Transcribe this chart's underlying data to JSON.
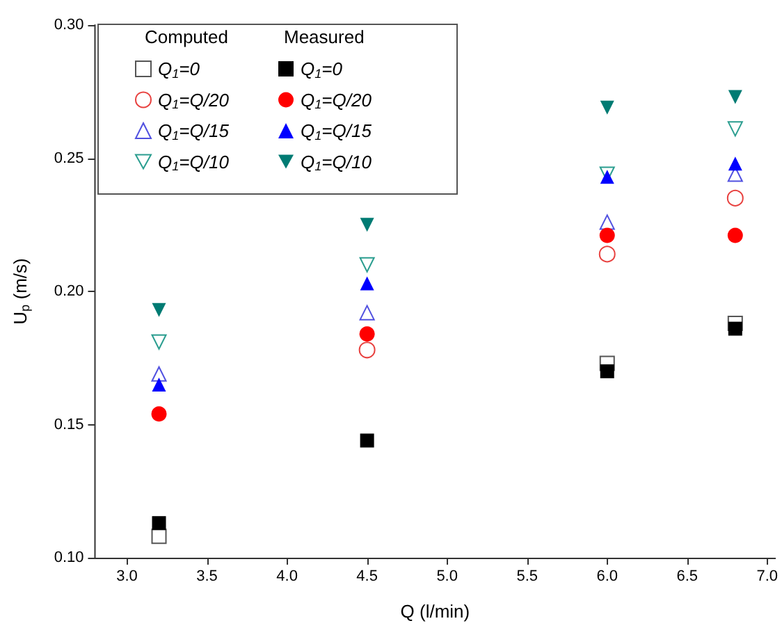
{
  "chart_data": {
    "type": "scatter",
    "xlabel": "Q (l/min)",
    "ylabel": "U$_{p}$ (m/s)",
    "x": [
      3.2,
      4.5,
      6.0,
      6.8
    ],
    "xlim": [
      2.8,
      7.05
    ],
    "xticks": [
      {
        "value": 3,
        "label": "3.0"
      },
      {
        "value": 3.5,
        "label": "3.5"
      },
      {
        "value": 4,
        "label": "4.0"
      },
      {
        "value": 4.5,
        "label": "4.5"
      },
      {
        "value": 5,
        "label": "5.0"
      },
      {
        "value": 5.5,
        "label": "5.5"
      },
      {
        "value": 6,
        "label": "6.0"
      },
      {
        "value": 6.5,
        "label": "6.5"
      },
      {
        "value": 7,
        "label": "7.0"
      }
    ],
    "ylim": [
      0.1,
      0.3
    ],
    "yticks": [
      {
        "value": 0.1,
        "label": "0.10"
      },
      {
        "value": 0.15,
        "label": "0.15"
      },
      {
        "value": 0.2,
        "label": "0.20"
      },
      {
        "value": 0.25,
        "label": "0.25"
      },
      {
        "value": 0.3,
        "label": "0.30"
      }
    ],
    "grid": false,
    "legend": "top left",
    "annotations": [
      "Computed",
      "Measured"
    ],
    "series": [
      {
        "name": "Q$_{1}$=0",
        "color": "#555555",
        "marker": "square-open",
        "values": [
          0.108,
          null,
          0.173,
          0.188
        ]
      },
      {
        "name": "Q$_{1}$=Q/20",
        "color": "#e8413f",
        "marker": "circle-open",
        "values": [
          null,
          0.178,
          0.214,
          0.235
        ]
      },
      {
        "name": "Q$_{1}$=Q/15",
        "color": "#5050e0",
        "marker": "triangle-open",
        "values": [
          0.169,
          0.192,
          0.226,
          0.244
        ]
      },
      {
        "name": "Q$_{1}$=Q/10",
        "color": "#2a9d8f",
        "marker": "triangle-down-open",
        "values": [
          0.181,
          0.21,
          0.244,
          0.261
        ]
      },
      {
        "name": "Q$_{1}$=0",
        "color": "#000000",
        "marker": "square",
        "values": [
          0.113,
          0.144,
          0.17,
          0.186
        ]
      },
      {
        "name": "Q$_{1}$=Q/20",
        "color": "#ff0000",
        "marker": "circle",
        "values": [
          0.154,
          0.184,
          0.221,
          0.221
        ]
      },
      {
        "name": "Q$_{1}$=Q/15",
        "color": "#0000ff",
        "marker": "triangle",
        "values": [
          0.165,
          0.203,
          0.243,
          0.248
        ]
      },
      {
        "name": "Q$_{1}$=Q/10",
        "color": "#007b73",
        "marker": "triangle-down",
        "values": [
          0.193,
          0.225,
          0.269,
          0.273
        ]
      }
    ]
  }
}
